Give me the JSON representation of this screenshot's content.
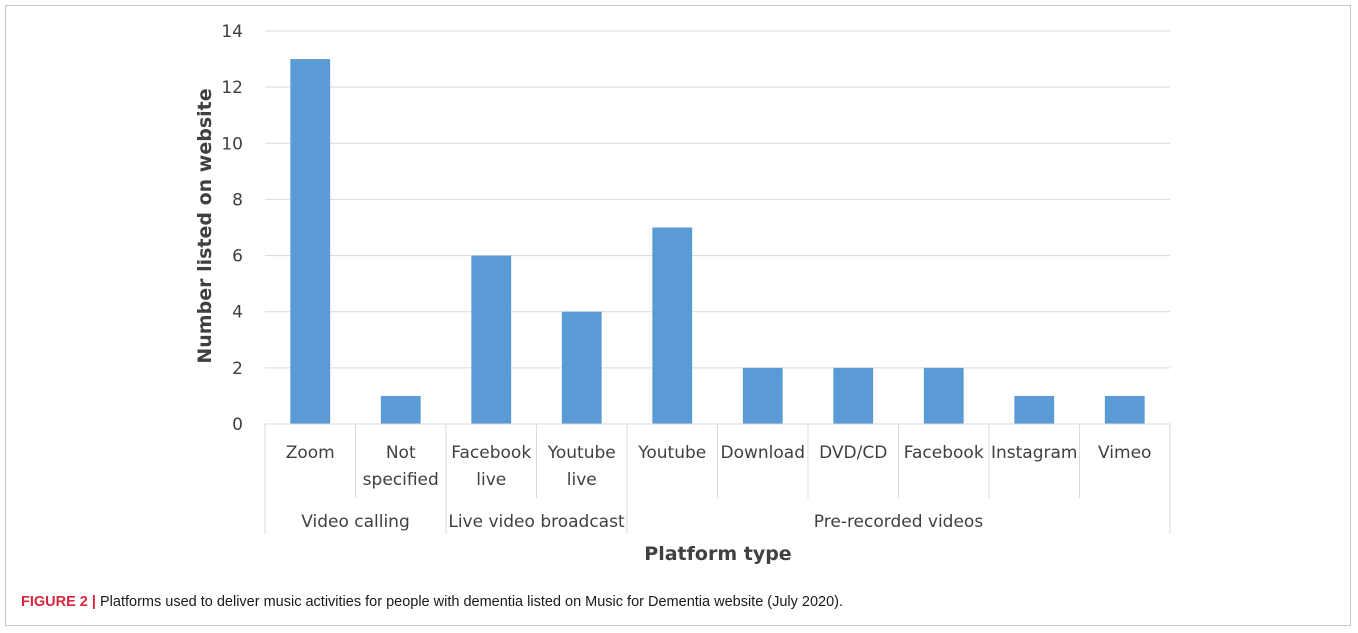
{
  "chart_data": {
    "type": "bar",
    "categories": [
      "Zoom",
      "Not specified",
      "Facebook live",
      "Youtube live",
      "Youtube",
      "Download",
      "DVD/CD",
      "Facebook",
      "Instagram",
      "Vimeo"
    ],
    "category_lines": [
      [
        "Zoom"
      ],
      [
        "Not",
        "specified"
      ],
      [
        "Facebook",
        "live"
      ],
      [
        "Youtube",
        "live"
      ],
      [
        "Youtube"
      ],
      [
        "Download"
      ],
      [
        "DVD/CD"
      ],
      [
        "Facebook"
      ],
      [
        "Instagram"
      ],
      [
        "Vimeo"
      ]
    ],
    "groups": [
      {
        "name": "Video calling",
        "count": 2
      },
      {
        "name": "Live video broadcast",
        "count": 2
      },
      {
        "name": "Pre-recorded videos",
        "count": 6
      }
    ],
    "values": [
      13,
      1,
      6,
      4,
      7,
      2,
      2,
      2,
      1,
      1
    ],
    "xlabel": "Platform type",
    "ylabel": "Number listed on website",
    "ylim": [
      0,
      14
    ],
    "yticks": [
      0,
      2,
      4,
      6,
      8,
      10,
      12,
      14
    ],
    "grid": true,
    "legend": "none",
    "bar_color": "#5b9bd5"
  },
  "caption": {
    "label": "FIGURE 2 |",
    "text": " Platforms used to deliver music activities for people with dementia listed on Music for Dementia website (July 2020)."
  }
}
